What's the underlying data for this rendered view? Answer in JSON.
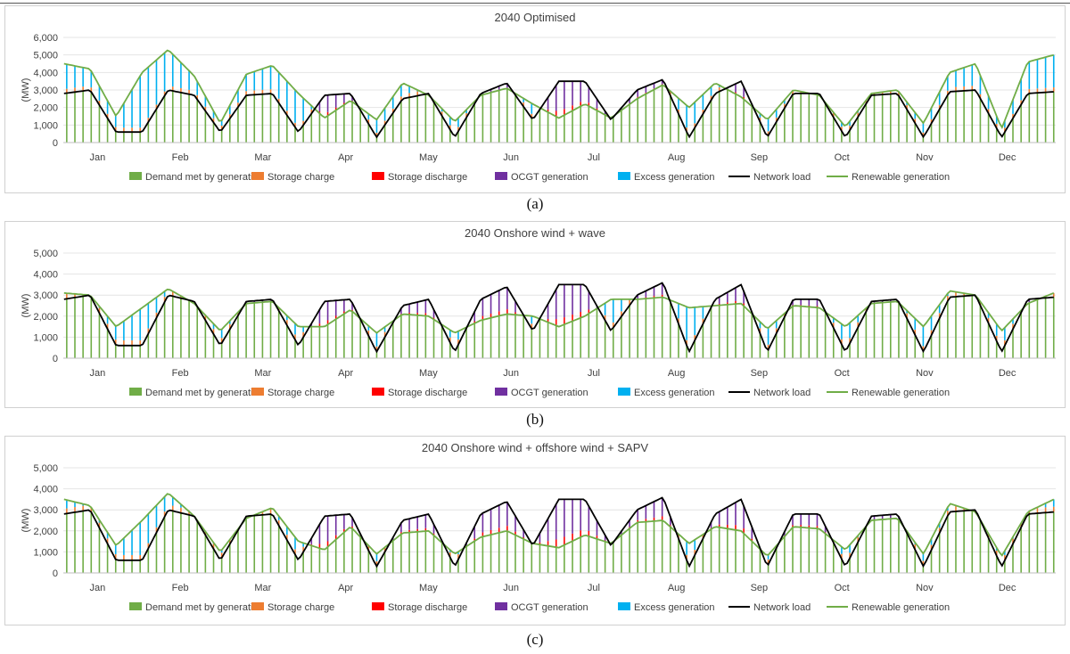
{
  "colors": {
    "demand": "#70AD47",
    "storage_charge": "#ED7D31",
    "storage_discharge": "#FF0000",
    "ocgt": "#7030A0",
    "excess": "#00B0F0",
    "network_load": "#000000",
    "renewable": "#70AD47"
  },
  "legend": [
    "Demand met by generation",
    "Storage charge",
    "Storage discharge",
    "OCGT generation",
    "Excess generation",
    "Network load",
    "Renewable generation"
  ],
  "months": [
    "Jan",
    "Feb",
    "Mar",
    "Apr",
    "May",
    "Jun",
    "Jul",
    "Aug",
    "Sep",
    "Oct",
    "Nov",
    "Dec"
  ],
  "chart_data": [
    {
      "type": "bar",
      "title": "2040 Optimised",
      "caption": "(a)",
      "ylabel": "(MW)",
      "ylim": [
        0,
        6000
      ],
      "yticks": [
        "0",
        "1,000",
        "2,000",
        "3,000",
        "4,000",
        "5,000",
        "6,000"
      ],
      "network_load": [
        2800,
        3000,
        600,
        600,
        3000,
        2700,
        600,
        2700,
        2800,
        600,
        2700,
        2800,
        300,
        2500,
        2800,
        300,
        2800,
        3400,
        1300,
        3500,
        3500,
        1300,
        3000,
        3600,
        300,
        2800,
        3500,
        300,
        2800,
        2800,
        300,
        2700,
        2800,
        300,
        2900,
        3000,
        300,
        2800,
        2900
      ],
      "renewable": [
        4500,
        4200,
        1500,
        4000,
        5300,
        3800,
        1100,
        3900,
        4400,
        2800,
        1400,
        2400,
        1300,
        3400,
        2700,
        1200,
        2700,
        3100,
        2200,
        1400,
        2200,
        1400,
        2500,
        3300,
        2000,
        3400,
        2600,
        1300,
        3000,
        2700,
        900,
        2800,
        3000,
        1100,
        4000,
        4500,
        800,
        4600,
        5000
      ]
    },
    {
      "type": "bar",
      "title": "2040 Onshore wind + wave",
      "caption": "(b)",
      "ylabel": "(MW)",
      "ylim": [
        0,
        5000
      ],
      "yticks": [
        "0",
        "1,000",
        "2,000",
        "3,000",
        "4,000",
        "5,000"
      ],
      "network_load": [
        2800,
        3000,
        600,
        600,
        3000,
        2700,
        600,
        2700,
        2800,
        600,
        2700,
        2800,
        300,
        2500,
        2800,
        300,
        2800,
        3400,
        1300,
        3500,
        3500,
        1300,
        3000,
        3600,
        300,
        2800,
        3500,
        300,
        2800,
        2800,
        300,
        2700,
        2800,
        300,
        2900,
        3000,
        300,
        2800,
        2900
      ],
      "renewable": [
        3100,
        3000,
        1500,
        2400,
        3300,
        2600,
        1300,
        2600,
        2700,
        1500,
        1500,
        2300,
        1200,
        2100,
        2000,
        1200,
        1800,
        2100,
        2000,
        1500,
        2000,
        2800,
        2800,
        2900,
        2400,
        2500,
        2600,
        1400,
        2500,
        2400,
        1500,
        2600,
        2700,
        1500,
        3200,
        3000,
        1300,
        2600,
        3100
      ]
    },
    {
      "type": "bar",
      "title": "2040 Onshore wind + offshore wind + SAPV",
      "caption": "(c)",
      "ylabel": "(MW)",
      "ylim": [
        0,
        5000
      ],
      "yticks": [
        "0",
        "1,000",
        "2,000",
        "3,000",
        "4,000",
        "5,000"
      ],
      "network_load": [
        2800,
        3000,
        600,
        600,
        3000,
        2700,
        600,
        2700,
        2800,
        600,
        2700,
        2800,
        300,
        2500,
        2800,
        300,
        2800,
        3400,
        1300,
        3500,
        3500,
        1300,
        3000,
        3600,
        300,
        2800,
        3500,
        300,
        2800,
        2800,
        300,
        2700,
        2800,
        300,
        2900,
        3000,
        300,
        2800,
        2900
      ],
      "renewable": [
        3500,
        3200,
        1300,
        2500,
        3800,
        2700,
        1000,
        2600,
        3100,
        1500,
        1100,
        2200,
        900,
        1900,
        2000,
        900,
        1700,
        2000,
        1400,
        1200,
        1800,
        1400,
        2400,
        2500,
        1400,
        2200,
        2000,
        800,
        2200,
        2100,
        1100,
        2500,
        2600,
        900,
        3300,
        2900,
        800,
        2900,
        3500
      ]
    }
  ]
}
